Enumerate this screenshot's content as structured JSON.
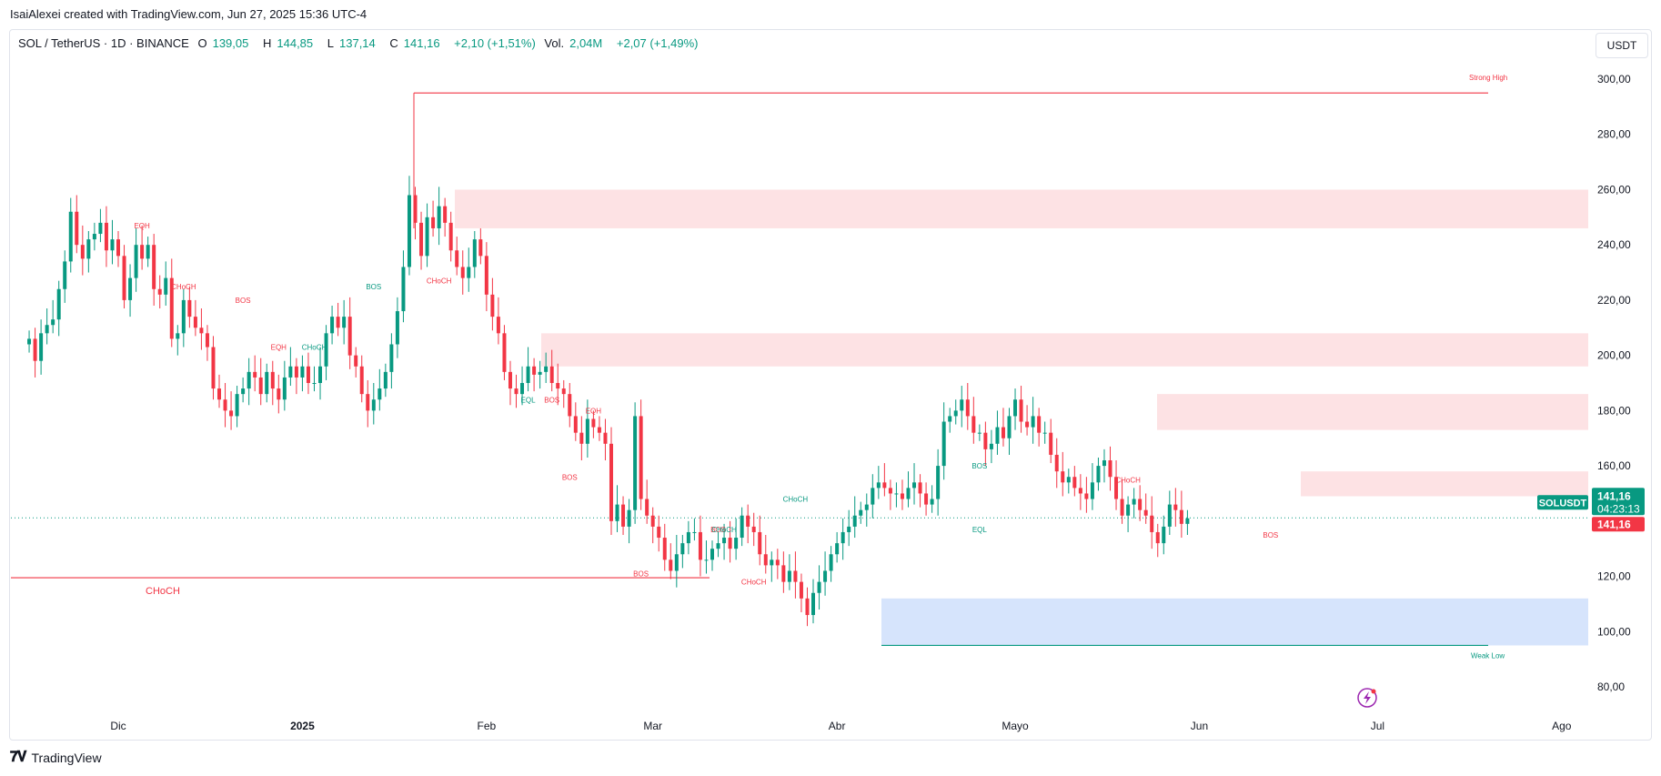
{
  "header": {
    "created_line": "IsaiAlexei created with TradingView.com, Jun 27, 2025 15:36 UTC-4"
  },
  "legend": {
    "symbol": "SOL / TetherUS · 1D · BINANCE",
    "o_label": "O",
    "o_value": "139,05",
    "h_label": "H",
    "h_value": "144,85",
    "l_label": "L",
    "l_value": "137,14",
    "c_label": "C",
    "c_value": "141,16",
    "change": "+2,10 (+1,51%)",
    "vol_label": "Vol.",
    "vol_value": "2,04M",
    "vol_change": "+2,07 (+1,49%)"
  },
  "currency_button": "USDT",
  "price_tags": {
    "symbol_tag": "SOLUSDT",
    "last_price": "141,16",
    "countdown": "04:23:13",
    "last_price_red": "141,16"
  },
  "footer": {
    "brand": "TradingView",
    "logo_icon": "tradingview-logo-icon"
  },
  "colors": {
    "up": "#089981",
    "down": "#f23645",
    "supply_zone": "#fde2e4",
    "demand_zone": "#d6e4fc"
  },
  "chart_data": {
    "type": "candlestick",
    "title": "SOL / TetherUS · 1D · BINANCE",
    "y_axis": {
      "ticks": [
        "300,00",
        "280,00",
        "260,00",
        "240,00",
        "220,00",
        "200,00",
        "180,00",
        "160,00",
        "140,00",
        "120,00",
        "100,00",
        "80,00"
      ],
      "ylim": [
        75,
        305
      ]
    },
    "x_axis": {
      "tick_labels": [
        "Dic",
        "2025",
        "Feb",
        "Mar",
        "Abr",
        "Mayo",
        "Jun",
        "Jul",
        "Ago"
      ]
    },
    "x_ticks": [
      {
        "label": "Dic",
        "date": "2024-12-01"
      },
      {
        "label": "2025",
        "date": "2025-01-01"
      },
      {
        "label": "Feb",
        "date": "2025-02-01"
      },
      {
        "label": "Mar",
        "date": "2025-03-01"
      },
      {
        "label": "Abr",
        "date": "2025-04-01"
      },
      {
        "label": "Mayo",
        "date": "2025-05-01"
      },
      {
        "label": "Jun",
        "date": "2025-06-01"
      },
      {
        "label": "Jul",
        "date": "2025-07-01"
      },
      {
        "label": "Ago",
        "date": "2025-08-01"
      }
    ],
    "first_candle_date": "2024-11-16",
    "closes": [
      206,
      198,
      208,
      211,
      213,
      224,
      234,
      252,
      240,
      235,
      242,
      244,
      248,
      238,
      242,
      236,
      220,
      228,
      240,
      235,
      240,
      224,
      222,
      228,
      206,
      208,
      220,
      214,
      210,
      208,
      203,
      188,
      184,
      180,
      178,
      186,
      188,
      194,
      192,
      186,
      194,
      188,
      184,
      192,
      196,
      192,
      196,
      190,
      190,
      196,
      208,
      214,
      210,
      214,
      200,
      196,
      186,
      180,
      184,
      188,
      194,
      204,
      216,
      232,
      258,
      248,
      236,
      250,
      246,
      254,
      248,
      238,
      232,
      228,
      232,
      242,
      236,
      222,
      214,
      208,
      194,
      188,
      186,
      190,
      196,
      193,
      194,
      196,
      190,
      188,
      186,
      178,
      172,
      168,
      177,
      174,
      172,
      168,
      140,
      146,
      138,
      144,
      178,
      148,
      142,
      138,
      134,
      126,
      122,
      128,
      132,
      136,
      136,
      126,
      126,
      130,
      132,
      134,
      130,
      134,
      142,
      138,
      136,
      128,
      124,
      126,
      124,
      118,
      122,
      118,
      112,
      106,
      114,
      118,
      122,
      128,
      132,
      136,
      138,
      142,
      144,
      146,
      152,
      154,
      152,
      150,
      150,
      148,
      152,
      154,
      150,
      146,
      148,
      160,
      176,
      178,
      180,
      184,
      178,
      172,
      172,
      166,
      168,
      174,
      170,
      178,
      184,
      176,
      174,
      178,
      172,
      172,
      164,
      158,
      154,
      156,
      152,
      150,
      148,
      154,
      160,
      162,
      156,
      148,
      142,
      146,
      148,
      144,
      142,
      136,
      132,
      138,
      146,
      144,
      139,
      141
    ],
    "levels": [
      {
        "label": "Strong High",
        "price": 295
      },
      {
        "label": "Weak Low",
        "price": 95
      },
      {
        "label": "CHoCH",
        "price": 119.5
      }
    ],
    "supply_zones": [
      {
        "top": 260,
        "bottom": 246
      },
      {
        "top": 208,
        "bottom": 196
      },
      {
        "top": 186,
        "bottom": 173
      },
      {
        "top": 158,
        "bottom": 149
      }
    ],
    "demand_zones": [
      {
        "top": 112,
        "bottom": 95
      }
    ],
    "last_price": 141.16
  },
  "annotations": {
    "strong_high": "Strong High",
    "weak_low": "Weak Low",
    "choch_big": "CHoCH",
    "labels": [
      {
        "text": "EQH",
        "color": "down",
        "date": "2024-12-05",
        "price": 246
      },
      {
        "text": "CHoCH",
        "color": "down",
        "date": "2024-12-12",
        "price": 224
      },
      {
        "text": "BOS",
        "color": "down",
        "date": "2024-12-22",
        "price": 219
      },
      {
        "text": "EQH",
        "color": "down",
        "date": "2024-12-28",
        "price": 202
      },
      {
        "text": "CHoCH",
        "color": "up",
        "date": "2025-01-03",
        "price": 202
      },
      {
        "text": "BOS",
        "color": "up",
        "date": "2025-01-13",
        "price": 224
      },
      {
        "text": "CHoCH",
        "color": "down",
        "date": "2025-01-24",
        "price": 226
      },
      {
        "text": "EQL",
        "color": "up",
        "date": "2025-02-08",
        "price": 183
      },
      {
        "text": "BOS",
        "color": "down",
        "date": "2025-02-12",
        "price": 183
      },
      {
        "text": "EQH",
        "color": "down",
        "date": "2025-02-19",
        "price": 179
      },
      {
        "text": "BOS",
        "color": "down",
        "date": "2025-02-15",
        "price": 155
      },
      {
        "text": "BOS",
        "color": "down",
        "date": "2025-02-27",
        "price": 120
      },
      {
        "text": "BOS",
        "color": "down",
        "date": "2025-03-12",
        "price": 136
      },
      {
        "text": "CHoCH",
        "color": "up",
        "date": "2025-03-13",
        "price": 136
      },
      {
        "text": "CHoCH",
        "color": "down",
        "date": "2025-03-18",
        "price": 117
      },
      {
        "text": "CHoCH",
        "color": "up",
        "date": "2025-03-25",
        "price": 147
      },
      {
        "text": "BOS",
        "color": "up",
        "date": "2025-04-25",
        "price": 159
      },
      {
        "text": "EQL",
        "color": "up",
        "date": "2025-04-25",
        "price": 136
      },
      {
        "text": "CHoCH",
        "color": "down",
        "date": "2025-05-20",
        "price": 154
      },
      {
        "text": "BOS",
        "color": "down",
        "date": "2025-06-13",
        "price": 134
      }
    ]
  }
}
